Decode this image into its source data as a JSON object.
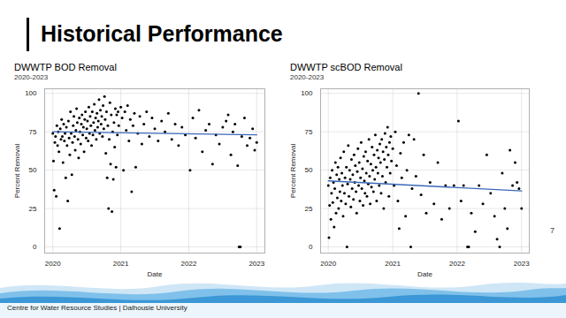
{
  "slide": {
    "title": "Historical Performance",
    "footer": "Centre for Water Resource Studies | Dalhousie University",
    "page": 7
  },
  "chart_data": [
    {
      "type": "scatter",
      "title": "DWWTP BOD Removal",
      "subtitle": "2020-2023",
      "xlabel": "Date",
      "ylabel": "Percent Removal",
      "xlim": [
        2019.88,
        2023.12
      ],
      "ylim": [
        -4,
        103
      ],
      "xticks": [
        2020,
        2021,
        2022,
        2023
      ],
      "yticks": [
        0,
        25,
        50,
        75,
        100
      ],
      "grid": true,
      "series": [
        {
          "type": "scatter",
          "color": "#000000",
          "marker": "circle",
          "x": [
            2020.0,
            2020.01,
            2020.02,
            2020.03,
            2020.04,
            2020.05,
            2020.06,
            2020.07,
            2020.08,
            2020.09,
            2020.1,
            2020.11,
            2020.12,
            2020.13,
            2020.14,
            2020.15,
            2020.16,
            2020.17,
            2020.18,
            2020.19,
            2020.2,
            2020.21,
            2020.22,
            2020.23,
            2020.24,
            2020.25,
            2020.26,
            2020.27,
            2020.28,
            2020.29,
            2020.3,
            2020.31,
            2020.32,
            2020.33,
            2020.34,
            2020.35,
            2020.36,
            2020.37,
            2020.38,
            2020.39,
            2020.4,
            2020.41,
            2020.42,
            2020.43,
            2020.44,
            2020.45,
            2020.46,
            2020.47,
            2020.48,
            2020.49,
            2020.5,
            2020.51,
            2020.52,
            2020.53,
            2020.54,
            2020.55,
            2020.56,
            2020.57,
            2020.58,
            2020.59,
            2020.6,
            2020.61,
            2020.62,
            2020.63,
            2020.64,
            2020.65,
            2020.66,
            2020.67,
            2020.68,
            2020.69,
            2020.7,
            2020.71,
            2020.72,
            2020.73,
            2020.74,
            2020.75,
            2020.76,
            2020.77,
            2020.78,
            2020.79,
            2020.8,
            2020.81,
            2020.82,
            2020.83,
            2020.84,
            2020.85,
            2020.86,
            2020.87,
            2020.88,
            2020.89,
            2020.9,
            2020.91,
            2020.92,
            2020.93,
            2020.94,
            2020.95,
            2020.96,
            2020.97,
            2021.0,
            2021.02,
            2021.04,
            2021.06,
            2021.08,
            2021.1,
            2021.12,
            2021.14,
            2021.16,
            2021.18,
            2021.2,
            2021.22,
            2021.25,
            2021.28,
            2021.31,
            2021.34,
            2021.38,
            2021.42,
            2021.46,
            2021.5,
            2021.55,
            2021.6,
            2021.65,
            2021.7,
            2021.75,
            2021.8,
            2021.85,
            2021.9,
            2021.95,
            2022.02,
            2022.06,
            2022.1,
            2022.15,
            2022.2,
            2022.25,
            2022.3,
            2022.35,
            2022.4,
            2022.45,
            2022.5,
            2022.55,
            2022.58,
            2022.62,
            2022.65,
            2022.68,
            2022.72,
            2022.74,
            2022.76,
            2022.78,
            2022.82,
            2022.86,
            2022.9,
            2022.94,
            2022.97,
            2023.0
          ],
          "values": [
            74,
            56,
            37,
            68,
            72,
            33,
            79,
            66,
            75,
            62,
            12,
            77,
            70,
            83,
            72,
            55,
            80,
            69,
            74,
            45,
            78,
            66,
            30,
            82,
            71,
            60,
            88,
            74,
            47,
            68,
            79,
            85,
            72,
            63,
            76,
            90,
            81,
            70,
            58,
            84,
            75,
            67,
            80,
            86,
            73,
            78,
            62,
            83,
            88,
            71,
            77,
            82,
            69,
            91,
            74,
            85,
            79,
            66,
            88,
            73,
            81,
            93,
            76,
            84,
            70,
            87,
            78,
            82,
            96,
            74,
            89,
            80,
            85,
            72,
            92,
            77,
            98,
            83,
            61,
            88,
            45,
            79,
            25,
            70,
            94,
            54,
            86,
            23,
            75,
            44,
            81,
            65,
            90,
            52,
            86,
            73,
            88,
            79,
            91,
            84,
            50,
            88,
            76,
            92,
            69,
            83,
            36,
            79,
            87,
            52,
            74,
            85,
            67,
            80,
            88,
            72,
            84,
            77,
            69,
            82,
            75,
            87,
            70,
            80,
            66,
            78,
            73,
            50,
            84,
            71,
            89,
            62,
            76,
            80,
            54,
            73,
            67,
            78,
            82,
            86,
            60,
            75,
            80,
            53,
            0,
            0,
            72,
            84,
            66,
            71,
            77,
            63,
            68
          ]
        },
        {
          "type": "line",
          "color": "#3a68b8",
          "line_style": "solid",
          "x": [
            2020,
            2023
          ],
          "values": [
            75,
            73
          ]
        }
      ]
    },
    {
      "type": "scatter",
      "title": "DWWTP scBOD Removal",
      "subtitle": "2020-2023",
      "xlabel": "Date",
      "ylabel": "Percent Removal",
      "xlim": [
        2019.88,
        2023.12
      ],
      "ylim": [
        -4,
        103
      ],
      "xticks": [
        2020,
        2021,
        2022,
        2023
      ],
      "yticks": [
        0,
        25,
        50,
        75,
        100
      ],
      "grid": true,
      "series": [
        {
          "type": "scatter",
          "color": "#000000",
          "marker": "circle",
          "x": [
            2020.0,
            2020.01,
            2020.02,
            2020.03,
            2020.04,
            2020.05,
            2020.06,
            2020.07,
            2020.08,
            2020.09,
            2020.1,
            2020.11,
            2020.12,
            2020.13,
            2020.14,
            2020.15,
            2020.16,
            2020.17,
            2020.18,
            2020.19,
            2020.2,
            2020.21,
            2020.22,
            2020.23,
            2020.24,
            2020.25,
            2020.26,
            2020.27,
            2020.28,
            2020.29,
            2020.3,
            2020.31,
            2020.32,
            2020.33,
            2020.34,
            2020.35,
            2020.36,
            2020.37,
            2020.38,
            2020.39,
            2020.4,
            2020.41,
            2020.42,
            2020.43,
            2020.44,
            2020.45,
            2020.46,
            2020.47,
            2020.48,
            2020.49,
            2020.5,
            2020.51,
            2020.52,
            2020.53,
            2020.54,
            2020.55,
            2020.56,
            2020.57,
            2020.58,
            2020.59,
            2020.6,
            2020.61,
            2020.62,
            2020.63,
            2020.64,
            2020.65,
            2020.66,
            2020.67,
            2020.68,
            2020.69,
            2020.7,
            2020.71,
            2020.72,
            2020.73,
            2020.74,
            2020.75,
            2020.76,
            2020.77,
            2020.78,
            2020.79,
            2020.8,
            2020.81,
            2020.82,
            2020.83,
            2020.84,
            2020.85,
            2020.86,
            2020.87,
            2020.88,
            2020.89,
            2020.9,
            2020.91,
            2020.92,
            2020.93,
            2020.94,
            2020.95,
            2020.96,
            2020.97,
            2020.98,
            2021.0,
            2021.02,
            2021.04,
            2021.06,
            2021.08,
            2021.1,
            2021.12,
            2021.14,
            2021.17,
            2021.2,
            2021.22,
            2021.25,
            2021.28,
            2021.3,
            2021.33,
            2021.36,
            2021.4,
            2021.44,
            2021.48,
            2021.52,
            2021.58,
            2021.64,
            2021.7,
            2021.76,
            2021.82,
            2021.88,
            2021.95,
            2022.02,
            2022.06,
            2022.1,
            2022.16,
            2022.18,
            2022.22,
            2022.28,
            2022.34,
            2022.4,
            2022.46,
            2022.52,
            2022.58,
            2022.62,
            2022.66,
            2022.7,
            2022.74,
            2022.78,
            2022.82,
            2022.86,
            2022.9,
            2022.93,
            2022.96,
            2023.0
          ],
          "values": [
            40,
            6,
            27,
            45,
            18,
            35,
            50,
            29,
            42,
            13,
            38,
            55,
            22,
            47,
            32,
            52,
            25,
            44,
            36,
            58,
            30,
            48,
            40,
            20,
            62,
            35,
            45,
            28,
            52,
            0,
            41,
            66,
            33,
            50,
            44,
            26,
            57,
            38,
            47,
            31,
            60,
            42,
            53,
            36,
            22,
            49,
            64,
            40,
            55,
            30,
            45,
            68,
            38,
            51,
            27,
            59,
            43,
            35,
            62,
            48,
            33,
            56,
            41,
            70,
            46,
            28,
            54,
            39,
            65,
            50,
            36,
            60,
            44,
            73,
            52,
            30,
            63,
            48,
            58,
            40,
            67,
            55,
            35,
            70,
            46,
            62,
            25,
            57,
            74,
            42,
            65,
            52,
            78,
            60,
            33,
            68,
            48,
            72,
            56,
            64,
            40,
            75,
            53,
            30,
            12,
            61,
            45,
            68,
            20,
            50,
            73,
            0,
            38,
            70,
            46,
            100,
            34,
            60,
            22,
            42,
            28,
            55,
            18,
            40,
            25,
            40,
            82,
            30,
            40,
            0,
            0,
            22,
            10,
            40,
            28,
            60,
            35,
            20,
            5,
            0,
            48,
            25,
            12,
            63,
            40,
            55,
            42,
            38,
            25
          ]
        },
        {
          "type": "line",
          "color": "#3a68b8",
          "line_style": "solid",
          "x": [
            2020,
            2023
          ],
          "values": [
            43,
            36.5
          ]
        }
      ]
    }
  ]
}
